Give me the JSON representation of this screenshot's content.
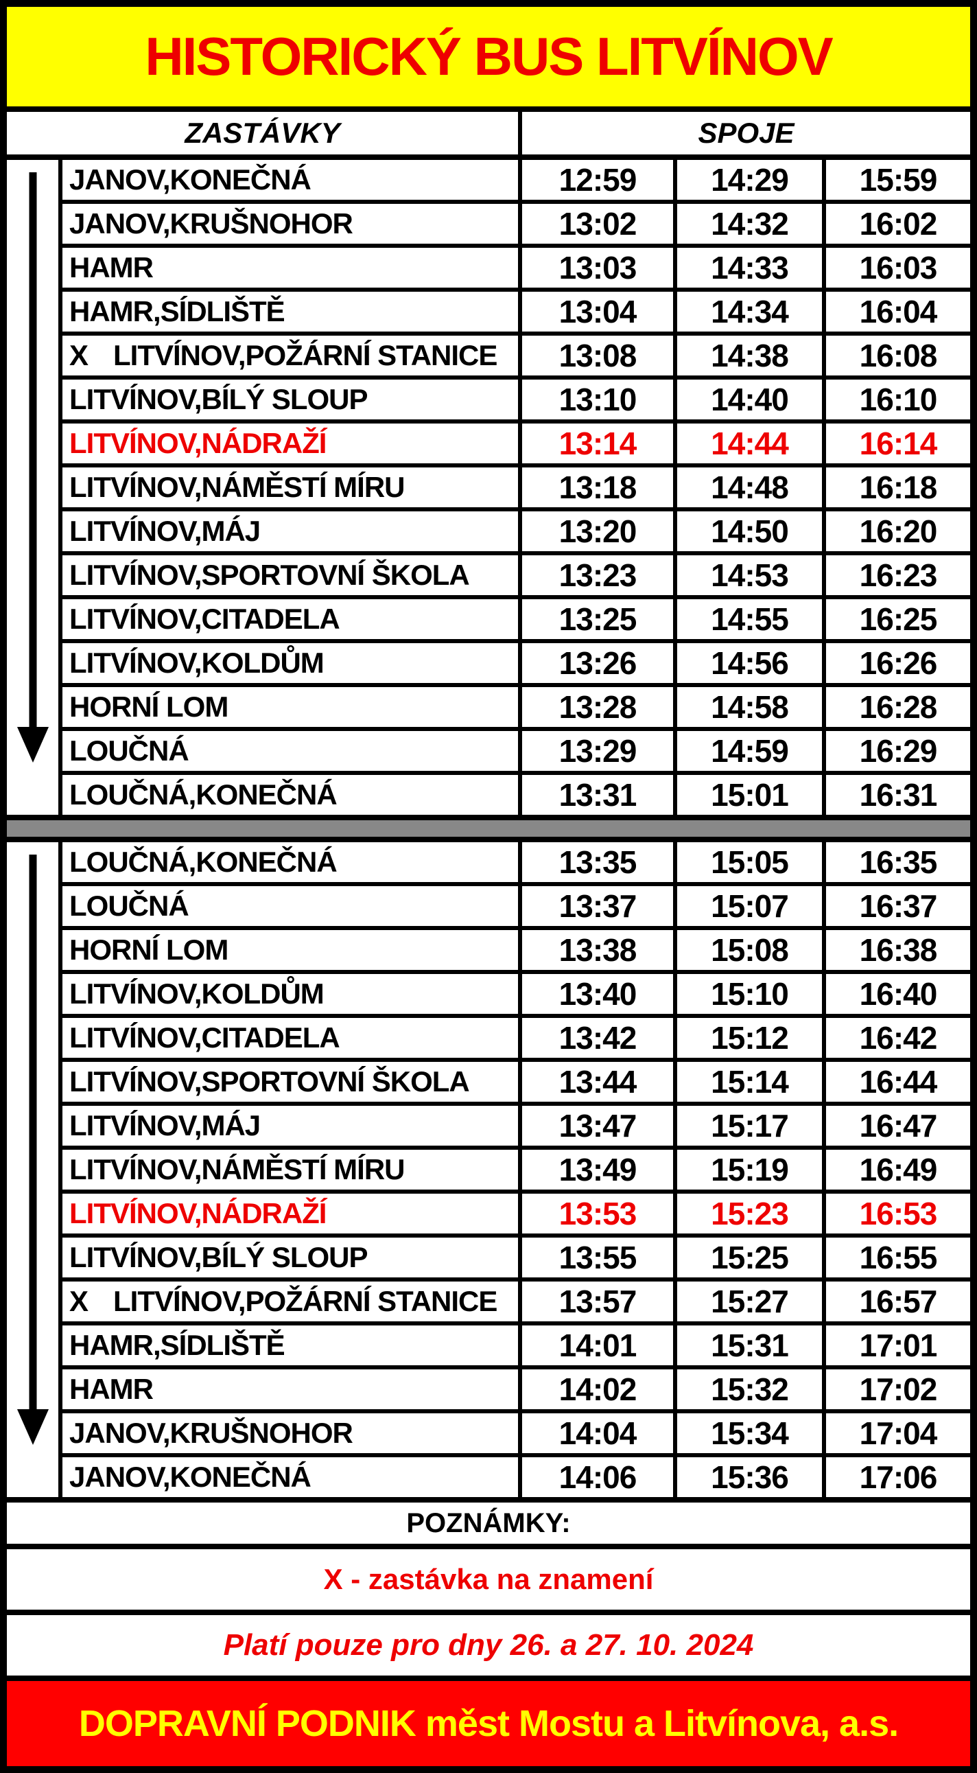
{
  "title": "HISTORICKÝ BUS LITVÍNOV",
  "header": {
    "stops_label": "ZASTÁVKY",
    "times_label": "SPOJE"
  },
  "icons": {
    "direction_arrow": "down-arrow-icon"
  },
  "colors": {
    "title_bg": "#FFFF00",
    "title_text": "#EE0000",
    "highlight_text": "#EE0000",
    "grid": "#000000",
    "cell_bg": "#FFFFFF",
    "separator": "#888888",
    "footer_bg": "#FF0000",
    "footer_text": "#FFFF00"
  },
  "sections": [
    {
      "name": "outbound",
      "rows": [
        {
          "stop": "JANOV,KONEČNÁ",
          "times": [
            "12:59",
            "14:29",
            "15:59"
          ]
        },
        {
          "stop": "JANOV,KRUŠNOHOR",
          "times": [
            "13:02",
            "14:32",
            "16:02"
          ]
        },
        {
          "stop": "HAMR",
          "times": [
            "13:03",
            "14:33",
            "16:03"
          ]
        },
        {
          "stop": "HAMR,SÍDLIŠTĚ",
          "times": [
            "13:04",
            "14:34",
            "16:04"
          ]
        },
        {
          "flag": "X",
          "stop": "LITVÍNOV,POŽÁRNÍ STANICE",
          "times": [
            "13:08",
            "14:38",
            "16:08"
          ]
        },
        {
          "stop": "LITVÍNOV,BÍLÝ SLOUP",
          "times": [
            "13:10",
            "14:40",
            "16:10"
          ]
        },
        {
          "stop": "LITVÍNOV,NÁDRAŽÍ",
          "times": [
            "13:14",
            "14:44",
            "16:14"
          ],
          "highlight": true
        },
        {
          "stop": "LITVÍNOV,NÁMĚSTÍ MÍRU",
          "times": [
            "13:18",
            "14:48",
            "16:18"
          ]
        },
        {
          "stop": "LITVÍNOV,MÁJ",
          "times": [
            "13:20",
            "14:50",
            "16:20"
          ]
        },
        {
          "stop": "LITVÍNOV,SPORTOVNÍ ŠKOLA",
          "times": [
            "13:23",
            "14:53",
            "16:23"
          ]
        },
        {
          "stop": "LITVÍNOV,CITADELA",
          "times": [
            "13:25",
            "14:55",
            "16:25"
          ]
        },
        {
          "stop": "LITVÍNOV,KOLDŮM",
          "times": [
            "13:26",
            "14:56",
            "16:26"
          ]
        },
        {
          "stop": "HORNÍ LOM",
          "times": [
            "13:28",
            "14:58",
            "16:28"
          ]
        },
        {
          "stop": "LOUČNÁ",
          "times": [
            "13:29",
            "14:59",
            "16:29"
          ]
        },
        {
          "stop": "LOUČNÁ,KONEČNÁ",
          "times": [
            "13:31",
            "15:01",
            "16:31"
          ]
        }
      ]
    },
    {
      "name": "return",
      "rows": [
        {
          "stop": "LOUČNÁ,KONEČNÁ",
          "times": [
            "13:35",
            "15:05",
            "16:35"
          ]
        },
        {
          "stop": "LOUČNÁ",
          "times": [
            "13:37",
            "15:07",
            "16:37"
          ]
        },
        {
          "stop": "HORNÍ LOM",
          "times": [
            "13:38",
            "15:08",
            "16:38"
          ]
        },
        {
          "stop": "LITVÍNOV,KOLDŮM",
          "times": [
            "13:40",
            "15:10",
            "16:40"
          ]
        },
        {
          "stop": "LITVÍNOV,CITADELA",
          "times": [
            "13:42",
            "15:12",
            "16:42"
          ]
        },
        {
          "stop": "LITVÍNOV,SPORTOVNÍ ŠKOLA",
          "times": [
            "13:44",
            "15:14",
            "16:44"
          ]
        },
        {
          "stop": "LITVÍNOV,MÁJ",
          "times": [
            "13:47",
            "15:17",
            "16:47"
          ]
        },
        {
          "stop": "LITVÍNOV,NÁMĚSTÍ MÍRU",
          "times": [
            "13:49",
            "15:19",
            "16:49"
          ]
        },
        {
          "stop": "LITVÍNOV,NÁDRAŽÍ",
          "times": [
            "13:53",
            "15:23",
            "16:53"
          ],
          "highlight": true
        },
        {
          "stop": "LITVÍNOV,BÍLÝ SLOUP",
          "times": [
            "13:55",
            "15:25",
            "16:55"
          ]
        },
        {
          "flag": "X",
          "stop": "LITVÍNOV,POŽÁRNÍ STANICE",
          "times": [
            "13:57",
            "15:27",
            "16:57"
          ]
        },
        {
          "stop": "HAMR,SÍDLIŠTĚ",
          "times": [
            "14:01",
            "15:31",
            "17:01"
          ]
        },
        {
          "stop": "HAMR",
          "times": [
            "14:02",
            "15:32",
            "17:02"
          ]
        },
        {
          "stop": "JANOV,KRUŠNOHOR",
          "times": [
            "14:04",
            "15:34",
            "17:04"
          ]
        },
        {
          "stop": "JANOV,KONEČNÁ",
          "times": [
            "14:06",
            "15:36",
            "17:06"
          ]
        }
      ]
    }
  ],
  "notes": {
    "header": "POZNÁMKY:",
    "on_request": "X - zastávka na znamení",
    "validity": "Platí pouze pro dny 26. a 27. 10. 2024"
  },
  "footer": "DOPRAVNÍ PODNIK měst Mostu a Litvínova, a.s."
}
